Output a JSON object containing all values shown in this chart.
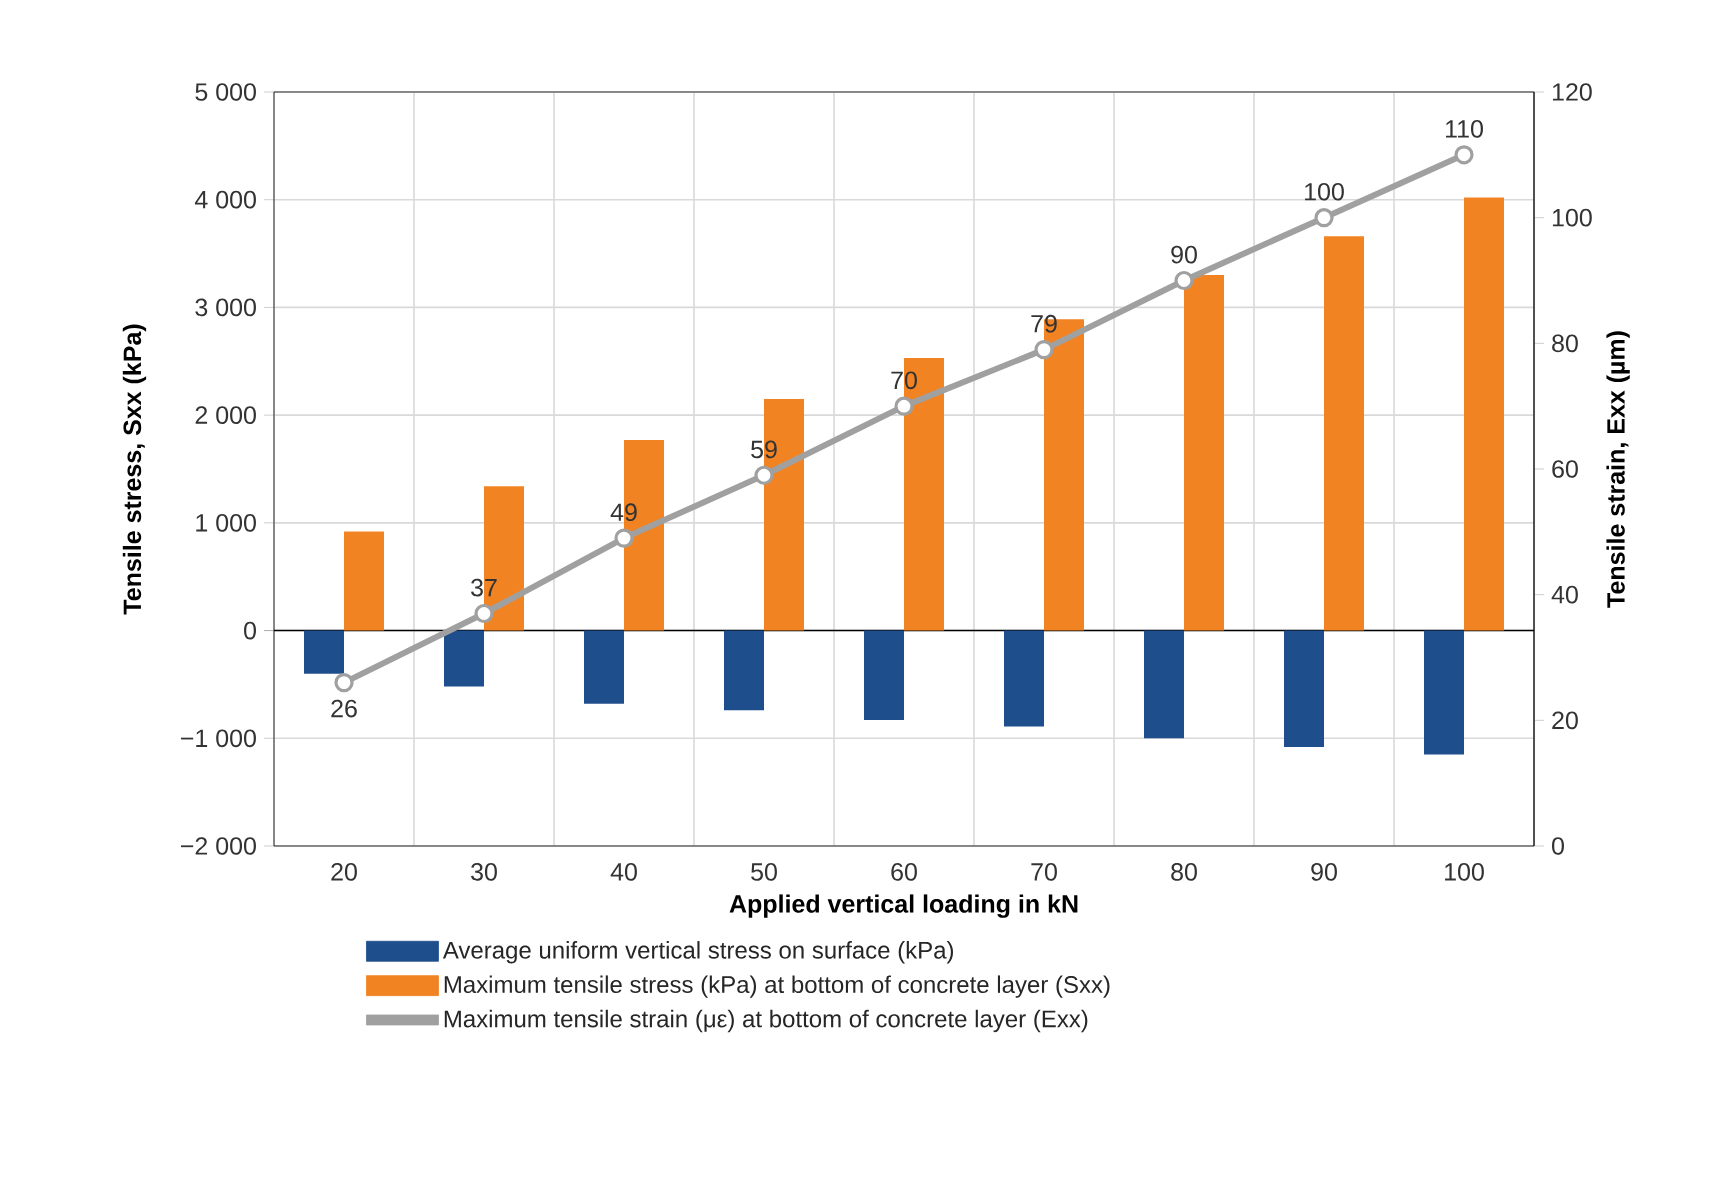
{
  "chart_data": {
    "type": "bar",
    "xlabel": "Applied vertical loading in kN",
    "ylabel": "Tensile stress, Sxx (kPa)",
    "y2label": "Tensile strain, Exx (µm)",
    "categories": [
      "20",
      "30",
      "40",
      "50",
      "60",
      "70",
      "80",
      "90",
      "100"
    ],
    "series": [
      {
        "name": "Average uniform vertical stress on surface (kPa)",
        "color": "#1f4e8c",
        "values": [
          -400,
          -520,
          -680,
          -740,
          -830,
          -890,
          -1000,
          -1080,
          -1150
        ]
      },
      {
        "name": "Maximum tensile stress (kPa) at bottom of concrete layer (Sxx)",
        "color": "#f28322",
        "values": [
          920,
          1340,
          1770,
          2150,
          2530,
          2890,
          3300,
          3660,
          4020
        ]
      },
      {
        "name": "Maximum tensile strain (με) at bottom of concrete layer (Exx)",
        "type": "line",
        "axis": "y2",
        "color": "#a0a0a0",
        "marker": "circle",
        "values": [
          26,
          37,
          49,
          59,
          70,
          79,
          90,
          100,
          110
        ],
        "value_labels": [
          "26",
          "37",
          "49",
          "59",
          "70",
          "79",
          "90",
          "100",
          "110"
        ]
      }
    ],
    "ylim": [
      -2000,
      5000
    ],
    "yticks": [
      {
        "value": -2000,
        "label": "−2 000"
      },
      {
        "value": -1000,
        "label": "−1 000"
      },
      0,
      {
        "value": 1000,
        "label": "1 000"
      },
      {
        "value": 2000,
        "label": "2 000"
      },
      {
        "value": 3000,
        "label": "3 000"
      },
      {
        "value": 4000,
        "label": "4 000"
      },
      {
        "value": 5000,
        "label": "5 000"
      }
    ],
    "y2lim": [
      0,
      120
    ],
    "y2ticks": [
      0,
      20,
      40,
      60,
      80,
      100,
      120
    ],
    "grid": true,
    "legend": "bottom"
  }
}
